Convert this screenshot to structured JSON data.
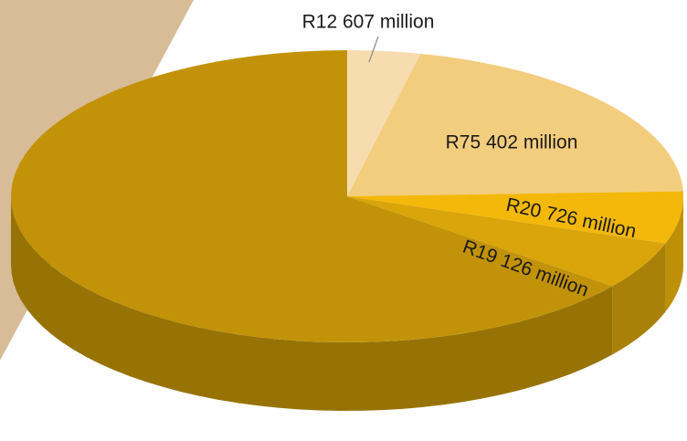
{
  "chart_data": {
    "type": "pie",
    "values": [
      12607,
      75402,
      20726,
      19126,
      232000
    ],
    "value_labels": [
      "R12 607 million",
      "R75 402 million",
      "R20 726 million",
      "R19 126 million",
      null
    ],
    "colors": [
      "#f7dcaf",
      "#f3cd7e",
      "#f3b80a",
      "#daa50a",
      "#c29308"
    ]
  }
}
